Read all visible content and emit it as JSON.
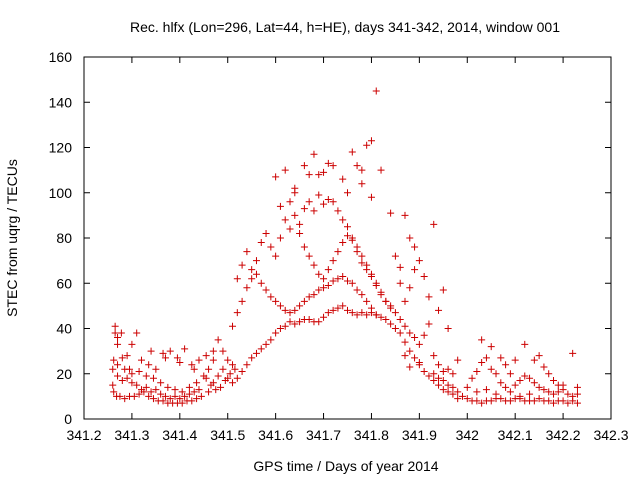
{
  "chart_data": {
    "type": "scatter",
    "title": "Rec. hlfx (Lon=296, Lat=44, h=HE), days 341-342, 2014, window 001",
    "xlabel": "GPS time / Days of year 2014",
    "ylabel": "STEC from uqrg / TECUs",
    "xlim": [
      341.2,
      342.3
    ],
    "ylim": [
      0,
      160
    ],
    "xticks": [
      "341.2",
      "341.3",
      "341.4",
      "341.5",
      "341.6",
      "341.7",
      "341.8",
      "341.9",
      "342",
      "342.1",
      "342.2",
      "342.3"
    ],
    "yticks": [
      "0",
      "20",
      "40",
      "60",
      "80",
      "100",
      "120",
      "140",
      "160"
    ],
    "grid": false,
    "legend": "none",
    "marker": "plus",
    "marker_color": "#cc0000",
    "points": [
      [
        341.265,
        41
      ],
      [
        341.265,
        38
      ],
      [
        341.27,
        36
      ],
      [
        341.27,
        33
      ],
      [
        341.278,
        38
      ],
      [
        341.29,
        28
      ],
      [
        341.3,
        33
      ],
      [
        341.31,
        38
      ],
      [
        341.262,
        26
      ],
      [
        341.28,
        27
      ],
      [
        341.295,
        22
      ],
      [
        341.26,
        15
      ],
      [
        341.262,
        12
      ],
      [
        341.268,
        10
      ],
      [
        341.275,
        10
      ],
      [
        341.285,
        9
      ],
      [
        341.295,
        10
      ],
      [
        341.305,
        10
      ],
      [
        341.315,
        11
      ],
      [
        341.325,
        12
      ],
      [
        341.335,
        10
      ],
      [
        341.345,
        9
      ],
      [
        341.355,
        8
      ],
      [
        341.365,
        8
      ],
      [
        341.375,
        7
      ],
      [
        341.385,
        7
      ],
      [
        341.395,
        7
      ],
      [
        341.405,
        7
      ],
      [
        341.415,
        8
      ],
      [
        341.425,
        8
      ],
      [
        341.435,
        9
      ],
      [
        341.445,
        10
      ],
      [
        341.26,
        22
      ],
      [
        341.27,
        19
      ],
      [
        341.28,
        17
      ],
      [
        341.29,
        18
      ],
      [
        341.3,
        16
      ],
      [
        341.31,
        15
      ],
      [
        341.32,
        13
      ],
      [
        341.33,
        14
      ],
      [
        341.34,
        12
      ],
      [
        341.35,
        13
      ],
      [
        341.36,
        11
      ],
      [
        341.37,
        10
      ],
      [
        341.38,
        9
      ],
      [
        341.39,
        10
      ],
      [
        341.4,
        9
      ],
      [
        341.41,
        10
      ],
      [
        341.42,
        11
      ],
      [
        341.43,
        12
      ],
      [
        341.44,
        13
      ],
      [
        341.27,
        24
      ],
      [
        341.285,
        22
      ],
      [
        341.3,
        20
      ],
      [
        341.315,
        21
      ],
      [
        341.33,
        19
      ],
      [
        341.345,
        18
      ],
      [
        341.36,
        16
      ],
      [
        341.375,
        14
      ],
      [
        341.39,
        13
      ],
      [
        341.405,
        12
      ],
      [
        341.42,
        14
      ],
      [
        341.435,
        16
      ],
      [
        341.45,
        19
      ],
      [
        341.46,
        22
      ],
      [
        341.47,
        26
      ],
      [
        341.32,
        26
      ],
      [
        341.335,
        24
      ],
      [
        341.35,
        22
      ],
      [
        341.365,
        29
      ],
      [
        341.38,
        30
      ],
      [
        341.395,
        27
      ],
      [
        341.41,
        31
      ],
      [
        341.425,
        24
      ],
      [
        341.44,
        26
      ],
      [
        341.455,
        28
      ],
      [
        341.47,
        30
      ],
      [
        341.48,
        35
      ],
      [
        341.49,
        30
      ],
      [
        341.5,
        26
      ],
      [
        341.51,
        24
      ],
      [
        341.34,
        30
      ],
      [
        341.37,
        27
      ],
      [
        341.4,
        25
      ],
      [
        341.43,
        22
      ],
      [
        341.455,
        18
      ],
      [
        341.465,
        15
      ],
      [
        341.475,
        13
      ],
      [
        341.485,
        14
      ],
      [
        341.495,
        17
      ],
      [
        341.505,
        20
      ],
      [
        341.515,
        22
      ],
      [
        341.46,
        12
      ],
      [
        341.47,
        16
      ],
      [
        341.48,
        19
      ],
      [
        341.49,
        22
      ],
      [
        341.5,
        18
      ],
      [
        341.51,
        16
      ],
      [
        341.52,
        18
      ],
      [
        341.53,
        21
      ],
      [
        341.54,
        24
      ],
      [
        341.55,
        27
      ],
      [
        341.56,
        29
      ],
      [
        341.57,
        31
      ],
      [
        341.58,
        33
      ],
      [
        341.59,
        35
      ],
      [
        341.6,
        38
      ],
      [
        341.61,
        40
      ],
      [
        341.62,
        41
      ],
      [
        341.63,
        43
      ],
      [
        341.64,
        42
      ],
      [
        341.65,
        43
      ],
      [
        341.66,
        44
      ],
      [
        341.67,
        44
      ],
      [
        341.68,
        43
      ],
      [
        341.69,
        43
      ],
      [
        341.7,
        45
      ],
      [
        341.71,
        47
      ],
      [
        341.72,
        48
      ],
      [
        341.73,
        49
      ],
      [
        341.74,
        50
      ],
      [
        341.75,
        48
      ],
      [
        341.76,
        47
      ],
      [
        341.77,
        46
      ],
      [
        341.78,
        47
      ],
      [
        341.79,
        46
      ],
      [
        341.8,
        47
      ],
      [
        341.81,
        46
      ],
      [
        341.82,
        45
      ],
      [
        341.83,
        44
      ],
      [
        341.84,
        42
      ],
      [
        341.85,
        40
      ],
      [
        341.86,
        38
      ],
      [
        341.87,
        34
      ],
      [
        341.88,
        30
      ],
      [
        341.89,
        27
      ],
      [
        341.9,
        24
      ],
      [
        341.91,
        21
      ],
      [
        341.92,
        19
      ],
      [
        341.93,
        17
      ],
      [
        341.94,
        15
      ],
      [
        341.95,
        13
      ],
      [
        341.96,
        12
      ],
      [
        341.97,
        11
      ],
      [
        341.51,
        41
      ],
      [
        341.52,
        47
      ],
      [
        341.53,
        52
      ],
      [
        341.54,
        58
      ],
      [
        341.55,
        62
      ],
      [
        341.56,
        64
      ],
      [
        341.57,
        60
      ],
      [
        341.58,
        57
      ],
      [
        341.59,
        54
      ],
      [
        341.6,
        52
      ],
      [
        341.61,
        50
      ],
      [
        341.62,
        48
      ],
      [
        341.63,
        47
      ],
      [
        341.64,
        48
      ],
      [
        341.65,
        50
      ],
      [
        341.66,
        52
      ],
      [
        341.67,
        54
      ],
      [
        341.68,
        55
      ],
      [
        341.69,
        57
      ],
      [
        341.7,
        58
      ],
      [
        341.71,
        59
      ],
      [
        341.72,
        61
      ],
      [
        341.73,
        62
      ],
      [
        341.74,
        63
      ],
      [
        341.75,
        61
      ],
      [
        341.76,
        60
      ],
      [
        341.77,
        57
      ],
      [
        341.78,
        55
      ],
      [
        341.79,
        52
      ],
      [
        341.8,
        49
      ],
      [
        341.81,
        46
      ],
      [
        341.52,
        62
      ],
      [
        341.53,
        68
      ],
      [
        341.54,
        74
      ],
      [
        341.55,
        66
      ],
      [
        341.56,
        70
      ],
      [
        341.57,
        78
      ],
      [
        341.58,
        82
      ],
      [
        341.59,
        76
      ],
      [
        341.6,
        72
      ],
      [
        341.61,
        80
      ],
      [
        341.62,
        88
      ],
      [
        341.63,
        84
      ],
      [
        341.64,
        90
      ],
      [
        341.65,
        86
      ],
      [
        341.66,
        93
      ],
      [
        341.67,
        96
      ],
      [
        341.68,
        92
      ],
      [
        341.69,
        99
      ],
      [
        341.7,
        95
      ],
      [
        341.71,
        97
      ],
      [
        341.72,
        96
      ],
      [
        341.73,
        92
      ],
      [
        341.74,
        88
      ],
      [
        341.75,
        85
      ],
      [
        341.76,
        80
      ],
      [
        341.77,
        76
      ],
      [
        341.78,
        72
      ],
      [
        341.79,
        68
      ],
      [
        341.8,
        64
      ],
      [
        341.81,
        60
      ],
      [
        341.82,
        56
      ],
      [
        341.83,
        52
      ],
      [
        341.84,
        49
      ],
      [
        341.6,
        107
      ],
      [
        341.62,
        110
      ],
      [
        341.64,
        102
      ],
      [
        341.66,
        112
      ],
      [
        341.68,
        117
      ],
      [
        341.69,
        108
      ],
      [
        341.7,
        109
      ],
      [
        341.71,
        113
      ],
      [
        341.72,
        112
      ],
      [
        341.74,
        106
      ],
      [
        341.75,
        100
      ],
      [
        341.76,
        118
      ],
      [
        341.77,
        112
      ],
      [
        341.78,
        110
      ],
      [
        341.79,
        121
      ],
      [
        341.8,
        123
      ],
      [
        341.81,
        145
      ],
      [
        341.82,
        110
      ],
      [
        341.78,
        104
      ],
      [
        341.8,
        98
      ],
      [
        341.61,
        94
      ],
      [
        341.64,
        100
      ],
      [
        341.63,
        96
      ],
      [
        341.67,
        108
      ],
      [
        341.65,
        82
      ],
      [
        341.66,
        76
      ],
      [
        341.67,
        72
      ],
      [
        341.68,
        68
      ],
      [
        341.69,
        64
      ],
      [
        341.7,
        62
      ],
      [
        341.71,
        66
      ],
      [
        341.72,
        70
      ],
      [
        341.73,
        74
      ],
      [
        341.74,
        78
      ],
      [
        341.75,
        81
      ],
      [
        341.76,
        79
      ],
      [
        341.77,
        74
      ],
      [
        341.78,
        69
      ],
      [
        341.79,
        66
      ],
      [
        341.8,
        63
      ],
      [
        341.81,
        59
      ],
      [
        341.82,
        55
      ],
      [
        341.83,
        52
      ],
      [
        341.84,
        50
      ],
      [
        341.85,
        47
      ],
      [
        341.86,
        44
      ],
      [
        341.87,
        41
      ],
      [
        341.88,
        38
      ],
      [
        341.89,
        36
      ],
      [
        341.9,
        33
      ],
      [
        341.84,
        91
      ],
      [
        341.87,
        90
      ],
      [
        341.88,
        80
      ],
      [
        341.85,
        72
      ],
      [
        341.86,
        67
      ],
      [
        341.89,
        76
      ],
      [
        341.9,
        70
      ],
      [
        341.91,
        63
      ],
      [
        341.92,
        54
      ],
      [
        341.88,
        58
      ],
      [
        341.87,
        52
      ],
      [
        341.86,
        60
      ],
      [
        341.89,
        66
      ],
      [
        341.93,
        86
      ],
      [
        341.95,
        57
      ],
      [
        341.94,
        48
      ],
      [
        341.96,
        40
      ],
      [
        341.92,
        42
      ],
      [
        341.91,
        37
      ],
      [
        341.93,
        28
      ],
      [
        341.9,
        25
      ],
      [
        341.88,
        23
      ],
      [
        341.87,
        28
      ],
      [
        341.94,
        24
      ],
      [
        341.95,
        21
      ],
      [
        341.93,
        20
      ],
      [
        341.94,
        18
      ],
      [
        341.95,
        17
      ],
      [
        341.96,
        15
      ],
      [
        341.97,
        14
      ],
      [
        341.98,
        12
      ],
      [
        341.96,
        22
      ],
      [
        341.97,
        20
      ],
      [
        341.98,
        26
      ],
      [
        341.98,
        9
      ],
      [
        341.99,
        10
      ],
      [
        342.0,
        9
      ],
      [
        342.01,
        8
      ],
      [
        342.02,
        8
      ],
      [
        342.03,
        7
      ],
      [
        342.04,
        8
      ],
      [
        342.05,
        8
      ],
      [
        342.06,
        9
      ],
      [
        342.07,
        9
      ],
      [
        342.08,
        8
      ],
      [
        342.09,
        8
      ],
      [
        342.1,
        9
      ],
      [
        342.11,
        9
      ],
      [
        342.12,
        8
      ],
      [
        342.13,
        8
      ],
      [
        342.14,
        8
      ],
      [
        342.15,
        9
      ],
      [
        342.16,
        8
      ],
      [
        342.17,
        8
      ],
      [
        342.18,
        7
      ],
      [
        342.19,
        8
      ],
      [
        342.2,
        8
      ],
      [
        342.21,
        7
      ],
      [
        342.22,
        8
      ],
      [
        342.23,
        7
      ],
      [
        342.01,
        18
      ],
      [
        342.02,
        21
      ],
      [
        342.03,
        25
      ],
      [
        342.04,
        27
      ],
      [
        342.05,
        22
      ],
      [
        342.06,
        20
      ],
      [
        342.07,
        16
      ],
      [
        342.08,
        14
      ],
      [
        342.09,
        12
      ],
      [
        342.1,
        15
      ],
      [
        342.11,
        17
      ],
      [
        342.12,
        19
      ],
      [
        342.13,
        18
      ],
      [
        342.14,
        16
      ],
      [
        342.15,
        14
      ],
      [
        342.16,
        13
      ],
      [
        342.17,
        12
      ],
      [
        342.18,
        11
      ],
      [
        342.19,
        12
      ],
      [
        342.2,
        13
      ],
      [
        342.21,
        11
      ],
      [
        342.22,
        10
      ],
      [
        342.23,
        11
      ],
      [
        342.03,
        35
      ],
      [
        342.05,
        32
      ],
      [
        342.07,
        27
      ],
      [
        342.08,
        24
      ],
      [
        342.09,
        20
      ],
      [
        342.12,
        33
      ],
      [
        342.1,
        26
      ],
      [
        342.14,
        26
      ],
      [
        342.15,
        28
      ],
      [
        342.16,
        23
      ],
      [
        342.17,
        20
      ],
      [
        342.18,
        17
      ],
      [
        342.19,
        15
      ],
      [
        342.2,
        15
      ],
      [
        342.22,
        29
      ],
      [
        342.23,
        14
      ],
      [
        342.0,
        14
      ],
      [
        342.02,
        12
      ],
      [
        342.04,
        13
      ],
      [
        342.06,
        11
      ],
      [
        342.11,
        10
      ],
      [
        342.13,
        11
      ]
    ]
  }
}
